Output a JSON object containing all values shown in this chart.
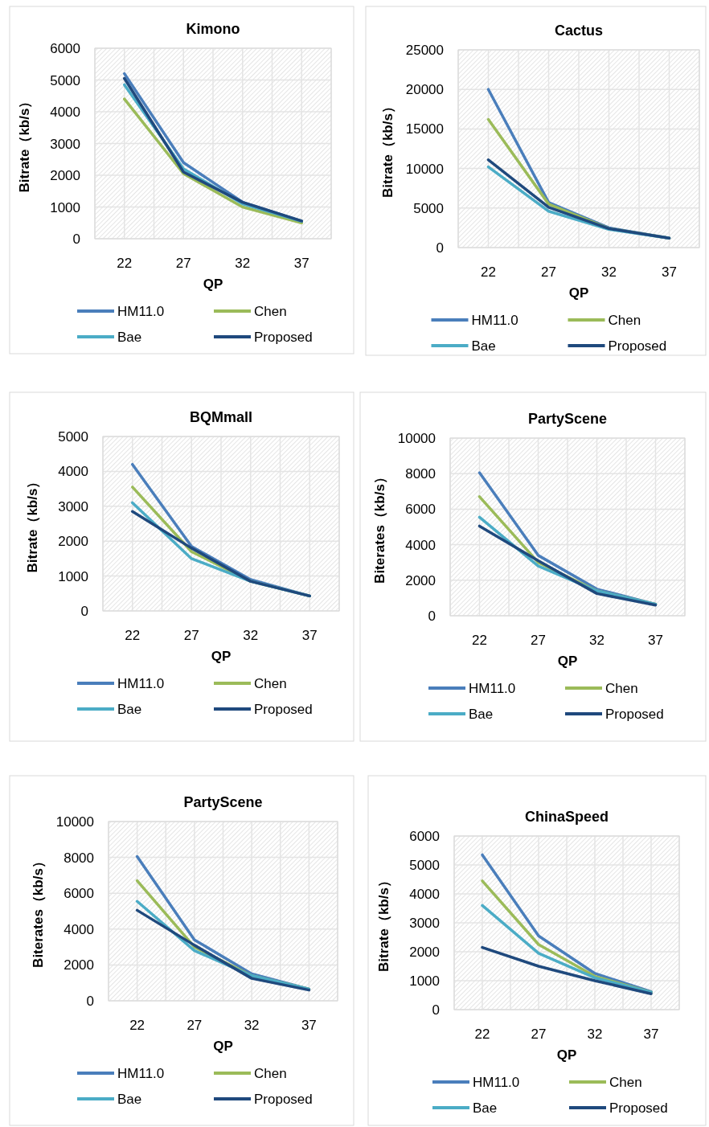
{
  "chart_data": [
    {
      "type": "line",
      "title": "Kimono",
      "xlabel": "QP",
      "ylabel": "Bitrate（kb/s）",
      "categories": [
        "22",
        "27",
        "32",
        "37"
      ],
      "ylim": [
        0,
        6000
      ],
      "yticks": [
        0,
        1000,
        2000,
        3000,
        4000,
        5000,
        6000
      ],
      "grid": true,
      "legend": "bottom",
      "series": [
        {
          "name": "HM11.0",
          "color": "#4a7ebb",
          "values": [
            5200,
            2400,
            1150,
            550
          ]
        },
        {
          "name": "Chen",
          "color": "#9bbb59",
          "values": [
            4400,
            2050,
            1000,
            500
          ]
        },
        {
          "name": "Bae",
          "color": "#4bacc6",
          "values": [
            4850,
            2200,
            1100,
            550
          ]
        },
        {
          "name": "Proposed",
          "color": "#1f497d",
          "values": [
            5050,
            2100,
            1150,
            560
          ]
        }
      ]
    },
    {
      "type": "line",
      "title": "Cactus",
      "xlabel": "QP",
      "ylabel": "Bitrate（kb/s）",
      "categories": [
        "22",
        "27",
        "32",
        "37"
      ],
      "ylim": [
        0,
        25000
      ],
      "yticks": [
        0,
        5000,
        10000,
        15000,
        20000,
        25000
      ],
      "grid": true,
      "legend": "bottom",
      "series": [
        {
          "name": "HM11.0",
          "color": "#4a7ebb",
          "values": [
            20000,
            5700,
            2500,
            1200
          ]
        },
        {
          "name": "Chen",
          "color": "#9bbb59",
          "values": [
            16200,
            5500,
            2400,
            1200
          ]
        },
        {
          "name": "Bae",
          "color": "#4bacc6",
          "values": [
            10200,
            4600,
            2300,
            1200
          ]
        },
        {
          "name": "Proposed",
          "color": "#1f497d",
          "values": [
            11100,
            5100,
            2400,
            1200
          ]
        }
      ]
    },
    {
      "type": "line",
      "title": "BQMmall",
      "xlabel": "QP",
      "ylabel": "Bitrate（kb/s）",
      "categories": [
        "22",
        "27",
        "32",
        "37"
      ],
      "ylim": [
        0,
        5000
      ],
      "yticks": [
        0,
        1000,
        2000,
        3000,
        4000,
        5000
      ],
      "grid": true,
      "legend": "bottom",
      "series": [
        {
          "name": "HM11.0",
          "color": "#4a7ebb",
          "values": [
            4200,
            1850,
            900,
            430
          ]
        },
        {
          "name": "Chen",
          "color": "#9bbb59",
          "values": [
            3550,
            1700,
            850,
            430
          ]
        },
        {
          "name": "Bae",
          "color": "#4bacc6",
          "values": [
            3100,
            1500,
            850,
            430
          ]
        },
        {
          "name": "Proposed",
          "color": "#1f497d",
          "values": [
            2850,
            1800,
            850,
            430
          ]
        }
      ]
    },
    {
      "type": "line",
      "title": "PartyScene",
      "xlabel": "QP",
      "ylabel": "Biterates（kb/s）",
      "categories": [
        "22",
        "27",
        "32",
        "37"
      ],
      "ylim": [
        0,
        10000
      ],
      "yticks": [
        0,
        2000,
        4000,
        6000,
        8000,
        10000
      ],
      "grid": true,
      "legend": "bottom",
      "series": [
        {
          "name": "HM11.0",
          "color": "#4a7ebb",
          "values": [
            8050,
            3400,
            1500,
            650
          ]
        },
        {
          "name": "Chen",
          "color": "#9bbb59",
          "values": [
            6700,
            3000,
            1400,
            650
          ]
        },
        {
          "name": "Bae",
          "color": "#4bacc6",
          "values": [
            5550,
            2800,
            1400,
            650
          ]
        },
        {
          "name": "Proposed",
          "color": "#1f497d",
          "values": [
            5050,
            3100,
            1250,
            600
          ]
        }
      ]
    },
    {
      "type": "line",
      "title": "PartyScene",
      "xlabel": "QP",
      "ylabel": "Biterates（kb/s）",
      "categories": [
        "22",
        "27",
        "32",
        "37"
      ],
      "ylim": [
        0,
        10000
      ],
      "yticks": [
        0,
        2000,
        4000,
        6000,
        8000,
        10000
      ],
      "grid": true,
      "legend": "bottom",
      "series": [
        {
          "name": "HM11.0",
          "color": "#4a7ebb",
          "values": [
            8050,
            3400,
            1500,
            650
          ]
        },
        {
          "name": "Chen",
          "color": "#9bbb59",
          "values": [
            6700,
            3000,
            1400,
            650
          ]
        },
        {
          "name": "Bae",
          "color": "#4bacc6",
          "values": [
            5550,
            2800,
            1400,
            650
          ]
        },
        {
          "name": "Proposed",
          "color": "#1f497d",
          "values": [
            5050,
            3100,
            1250,
            600
          ]
        }
      ]
    },
    {
      "type": "line",
      "title": "ChinaSpeed",
      "xlabel": "QP",
      "ylabel": "Bitrate（kb/s）",
      "categories": [
        "22",
        "27",
        "32",
        "37"
      ],
      "ylim": [
        0,
        6000
      ],
      "yticks": [
        0,
        1000,
        2000,
        3000,
        4000,
        5000,
        6000
      ],
      "grid": true,
      "legend": "bottom",
      "series": [
        {
          "name": "HM11.0",
          "color": "#4a7ebb",
          "values": [
            5350,
            2550,
            1250,
            620
          ]
        },
        {
          "name": "Chen",
          "color": "#9bbb59",
          "values": [
            4450,
            2250,
            1150,
            600
          ]
        },
        {
          "name": "Bae",
          "color": "#4bacc6",
          "values": [
            3600,
            1950,
            1100,
            600
          ]
        },
        {
          "name": "Proposed",
          "color": "#1f497d",
          "values": [
            2150,
            1500,
            1000,
            550
          ]
        }
      ]
    }
  ]
}
